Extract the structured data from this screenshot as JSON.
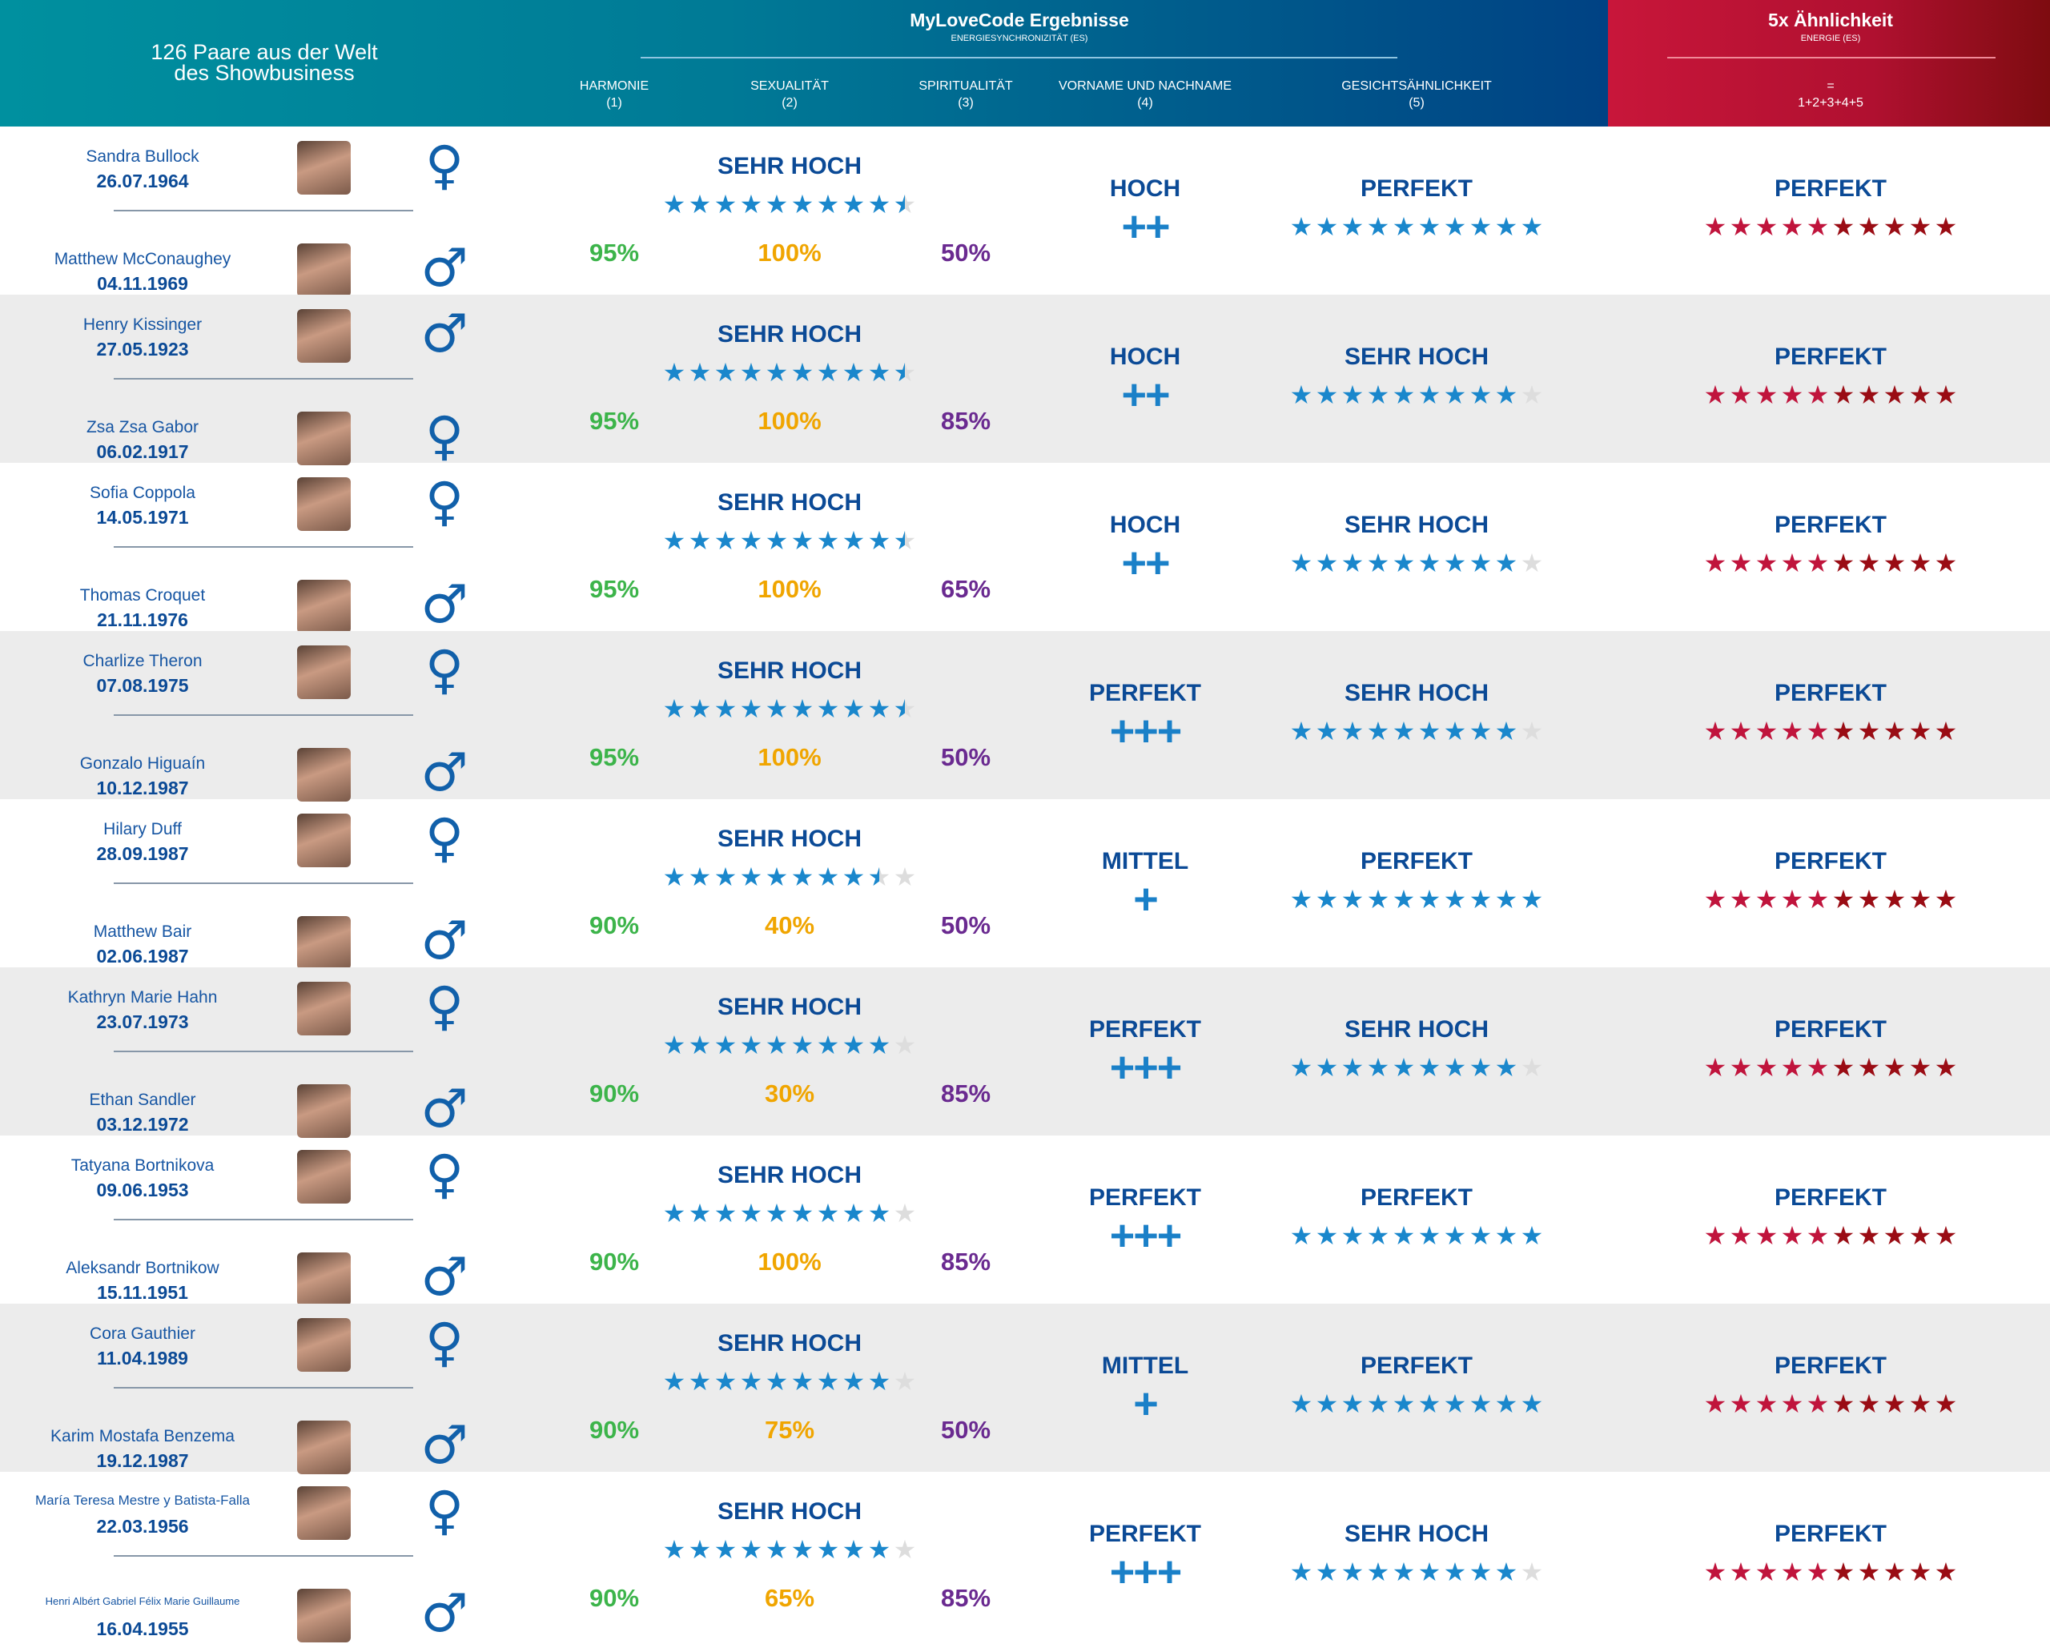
{
  "header": {
    "left_title_1": "126 Paare aus der Welt",
    "left_title_2": "des Showbusiness",
    "main_title": "MyLoveCode Ergebnisse",
    "main_subtitle": "ENERGIESYNCHRONIZITÄT (ES)",
    "columns": [
      {
        "label": "HARMONIE",
        "num": "(1)"
      },
      {
        "label": "SEXUALITÄT",
        "num": "(2)"
      },
      {
        "label": "SPIRITUALITÄT",
        "num": "(3)"
      },
      {
        "label": "VORNAME UND NACHNAME",
        "num": "(4)"
      },
      {
        "label": "GESICHTSÄHNLICHKEIT",
        "num": "(5)"
      }
    ],
    "red_title": "5x Ähnlichkeit",
    "red_subtitle": "ENERGIE (ES)",
    "red_eq": "=",
    "red_formula": "1+2+3+4+5"
  },
  "colors": {
    "dark_blue": "#0b4a96",
    "star_blue": "#1a87cc",
    "green": "#3cb44a",
    "orange": "#f0a500",
    "purple": "#6a2a90",
    "red": "#c0143c",
    "empty_star": "#dddddd"
  },
  "pairs": [
    {
      "p1": {
        "name": "Sandra Bullock",
        "date": "26.07.1964",
        "gender": "♀"
      },
      "p2": {
        "name": "Matthew McConaughey",
        "date": "04.11.1969",
        "gender": "♂"
      },
      "sync_label": "SEHR HOCH",
      "sync_stars": 9.5,
      "harmonie": "95%",
      "sexualitaet": "100%",
      "spiritualitaet": "50%",
      "name_label": "HOCH",
      "name_plus": "++",
      "face_label": "PERFEKT",
      "face_stars": 10,
      "total_label": "PERFEKT",
      "total_stars": 10
    },
    {
      "p1": {
        "name": "Henry Kissinger",
        "date": "27.05.1923",
        "gender": "♂"
      },
      "p2": {
        "name": "Zsa Zsa Gabor",
        "date": "06.02.1917",
        "gender": "♀"
      },
      "sync_label": "SEHR HOCH",
      "sync_stars": 9.5,
      "harmonie": "95%",
      "sexualitaet": "100%",
      "spiritualitaet": "85%",
      "name_label": "HOCH",
      "name_plus": "++",
      "face_label": "SEHR HOCH",
      "face_stars": 9,
      "total_label": "PERFEKT",
      "total_stars": 10
    },
    {
      "p1": {
        "name": "Sofia Coppola",
        "date": "14.05.1971",
        "gender": "♀"
      },
      "p2": {
        "name": "Thomas Croquet",
        "date": "21.11.1976",
        "gender": "♂"
      },
      "sync_label": "SEHR HOCH",
      "sync_stars": 9.5,
      "harmonie": "95%",
      "sexualitaet": "100%",
      "spiritualitaet": "65%",
      "name_label": "HOCH",
      "name_plus": "++",
      "face_label": "SEHR HOCH",
      "face_stars": 9,
      "total_label": "PERFEKT",
      "total_stars": 10
    },
    {
      "p1": {
        "name": "Charlize Theron",
        "date": "07.08.1975",
        "gender": "♀"
      },
      "p2": {
        "name": "Gonzalo Higuaín",
        "date": "10.12.1987",
        "gender": "♂"
      },
      "sync_label": "SEHR HOCH",
      "sync_stars": 9.5,
      "harmonie": "95%",
      "sexualitaet": "100%",
      "spiritualitaet": "50%",
      "name_label": "PERFEKT",
      "name_plus": "+++",
      "face_label": "SEHR HOCH",
      "face_stars": 9,
      "total_label": "PERFEKT",
      "total_stars": 10
    },
    {
      "p1": {
        "name": "Hilary Duff",
        "date": "28.09.1987",
        "gender": "♀"
      },
      "p2": {
        "name": "Matthew Bair",
        "date": "02.06.1987",
        "gender": "♂"
      },
      "sync_label": "SEHR HOCH",
      "sync_stars": 8.5,
      "harmonie": "90%",
      "sexualitaet": "40%",
      "spiritualitaet": "50%",
      "name_label": "MITTEL",
      "name_plus": "+",
      "face_label": "PERFEKT",
      "face_stars": 10,
      "total_label": "PERFEKT",
      "total_stars": 10
    },
    {
      "p1": {
        "name": "Kathryn Marie Hahn",
        "date": "23.07.1973",
        "gender": "♀"
      },
      "p2": {
        "name": "Ethan Sandler",
        "date": "03.12.1972",
        "gender": "♂"
      },
      "sync_label": "SEHR HOCH",
      "sync_stars": 9,
      "harmonie": "90%",
      "sexualitaet": "30%",
      "spiritualitaet": "85%",
      "name_label": "PERFEKT",
      "name_plus": "+++",
      "face_label": "SEHR HOCH",
      "face_stars": 9,
      "total_label": "PERFEKT",
      "total_stars": 10
    },
    {
      "p1": {
        "name": "Tatyana Bortnikova",
        "date": "09.06.1953",
        "gender": "♀"
      },
      "p2": {
        "name": "Aleksandr Bortnikow",
        "date": "15.11.1951",
        "gender": "♂"
      },
      "sync_label": "SEHR HOCH",
      "sync_stars": 9,
      "harmonie": "90%",
      "sexualitaet": "100%",
      "spiritualitaet": "85%",
      "name_label": "PERFEKT",
      "name_plus": "+++",
      "face_label": "PERFEKT",
      "face_stars": 10,
      "total_label": "PERFEKT",
      "total_stars": 10
    },
    {
      "p1": {
        "name": "Cora Gauthier",
        "date": "11.04.1989",
        "gender": "♀"
      },
      "p2": {
        "name": "Karim Mostafa Benzema",
        "date": "19.12.1987",
        "gender": "♂"
      },
      "sync_label": "SEHR HOCH",
      "sync_stars": 9,
      "harmonie": "90%",
      "sexualitaet": "75%",
      "spiritualitaet": "50%",
      "name_label": "MITTEL",
      "name_plus": "+",
      "face_label": "PERFEKT",
      "face_stars": 10,
      "total_label": "PERFEKT",
      "total_stars": 10
    },
    {
      "p1": {
        "name": "María Teresa Mestre y Batista-Falla",
        "date": "22.03.1956",
        "gender": "♀"
      },
      "p2": {
        "name": "Henri Albért Gabriel Félix Marie Guillaume",
        "date": "16.04.1955",
        "gender": "♂"
      },
      "sync_label": "SEHR HOCH",
      "sync_stars": 9,
      "harmonie": "90%",
      "sexualitaet": "65%",
      "spiritualitaet": "85%",
      "name_label": "PERFEKT",
      "name_plus": "+++",
      "face_label": "SEHR HOCH",
      "face_stars": 9,
      "total_label": "PERFEKT",
      "total_stars": 10
    }
  ]
}
